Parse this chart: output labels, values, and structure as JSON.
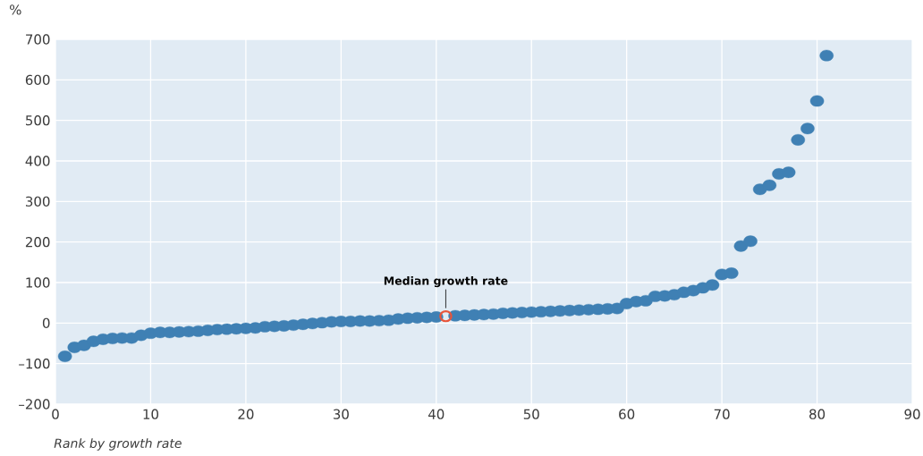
{
  "chart_data": {
    "type": "scatter",
    "ylabel": "%",
    "xlabel": "Rank by growth rate",
    "x": [
      1,
      2,
      3,
      4,
      5,
      6,
      7,
      8,
      9,
      10,
      11,
      12,
      13,
      14,
      15,
      16,
      17,
      18,
      19,
      20,
      21,
      22,
      23,
      24,
      25,
      26,
      27,
      28,
      29,
      30,
      31,
      32,
      33,
      34,
      35,
      36,
      37,
      38,
      39,
      40,
      41,
      42,
      43,
      44,
      45,
      46,
      47,
      48,
      49,
      50,
      51,
      52,
      53,
      54,
      55,
      56,
      57,
      58,
      59,
      60,
      61,
      62,
      63,
      64,
      65,
      66,
      67,
      68,
      69,
      70,
      71,
      72,
      73,
      74,
      75,
      76,
      77,
      78,
      79,
      80,
      81
    ],
    "values": [
      -82,
      -60,
      -55,
      -45,
      -40,
      -38,
      -37,
      -37,
      -30,
      -25,
      -23,
      -23,
      -22,
      -21,
      -20,
      -18,
      -16,
      -15,
      -14,
      -13,
      -12,
      -9,
      -8,
      -7,
      -5,
      -3,
      -1,
      1,
      3,
      4,
      4,
      5,
      5,
      6,
      7,
      10,
      12,
      13,
      14,
      15,
      17,
      18,
      19,
      20,
      21,
      22,
      24,
      25,
      26,
      27,
      28,
      29,
      30,
      31,
      32,
      33,
      34,
      35,
      36,
      48,
      53,
      55,
      66,
      67,
      70,
      76,
      80,
      87,
      94,
      120,
      123,
      190,
      202,
      330,
      340,
      368,
      372,
      452,
      480,
      548,
      660
    ],
    "color": "#3f80b4",
    "colors": [
      "#3f80b4",
      "#3f80b4",
      "#3f80b4",
      "#3f80b4",
      "#3f80b4",
      "#3f80b4",
      "#3f80b4",
      "#3f80b4",
      "#3f80b4",
      "#3f80b4",
      "#3f80b4",
      "#3f80b4",
      "#3f80b4",
      "#3f80b4",
      "#3f80b4",
      "#3f80b4",
      "#3f80b4",
      "#3f80b4",
      "#3f80b4",
      "#3f80b4",
      "#3f80b4",
      "#3f80b4",
      "#3f80b4",
      "#3f80b4",
      "#3f80b4",
      "#3f80b4",
      "#3f80b4",
      "#3f80b4",
      "#3f80b4",
      "#3f80b4",
      "#3f80b4",
      "#3f80b4",
      "#3f80b4",
      "#3f80b4",
      "#3f80b4",
      "#3f80b4",
      "#3f80b4",
      "#3f80b4",
      "#3f80b4",
      "#3f80b4",
      "#e8553b",
      "#3f80b4",
      "#3f80b4",
      "#3f80b4",
      "#3f80b4",
      "#3f80b4",
      "#3f80b4",
      "#3f80b4",
      "#3f80b4",
      "#3f80b4",
      "#3f80b4",
      "#3f80b4",
      "#3f80b4",
      "#3f80b4",
      "#3f80b4",
      "#3f80b4",
      "#3f80b4",
      "#3f80b4",
      "#3f80b4",
      "#3f80b4",
      "#3f80b4",
      "#3f80b4",
      "#3f80b4",
      "#3f80b4",
      "#3f80b4",
      "#3f80b4",
      "#3f80b4",
      "#3f80b4",
      "#3f80b4",
      "#3f80b4",
      "#3f80b4",
      "#3f80b4",
      "#3f80b4",
      "#3f80b4",
      "#3f80b4",
      "#3f80b4",
      "#3f80b4",
      "#3f80b4",
      "#3f80b4",
      "#3f80b4",
      "#3f80b4"
    ],
    "marker": "circle",
    "xlim": [
      0,
      90
    ],
    "xticks": [
      0,
      10,
      20,
      30,
      40,
      50,
      60,
      70,
      80,
      90
    ],
    "ylim": [
      -200,
      700
    ],
    "yticks": [
      {
        "value": -200,
        "label": "–200"
      },
      {
        "value": -100,
        "label": "–100"
      },
      0,
      100,
      200,
      300,
      400,
      500,
      600,
      700
    ],
    "grid": true,
    "annotations": [
      {
        "text": "Median growth rate",
        "x": 41,
        "y": 17
      }
    ]
  }
}
